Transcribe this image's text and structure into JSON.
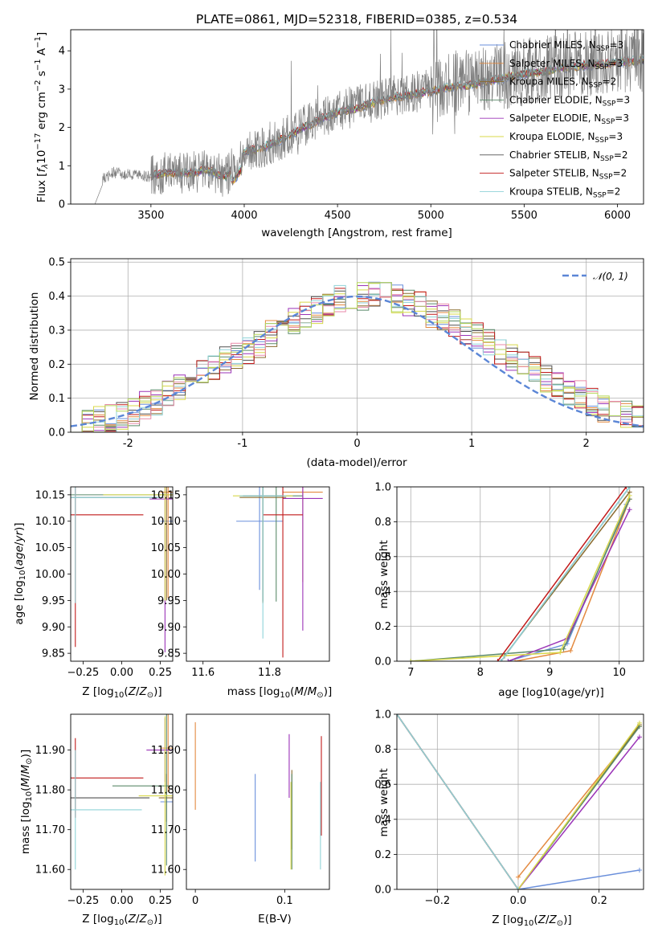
{
  "colors": {
    "Chabrier MILES": "#6a8fdb",
    "Salpeter MILES": "#e3893f",
    "Kroupa MILES": "#8a6b2e",
    "Chabrier ELODIE": "#5b8a6a",
    "Salpeter ELODIE": "#9b34b8",
    "Kroupa ELODIE": "#d8d84a",
    "Chabrier STELIB": "#505050",
    "Salpeter STELIB": "#c11a1a",
    "Kroupa STELIB": "#8fd3d8",
    "extra_pink": "#e98aa9",
    "extra_lime": "#b5d65a",
    "normal_curve": "#5b86d6",
    "data_spectrum": "#808080",
    "grid": "#b0b0b0"
  },
  "models": [
    {
      "name": "Chabrier MILES",
      "library": "MILES",
      "nssp": "3"
    },
    {
      "name": "Salpeter MILES",
      "library": "MILES",
      "nssp": "3"
    },
    {
      "name": "Kroupa MILES",
      "library": "MILES",
      "nssp": "2"
    },
    {
      "name": "Chabrier ELODIE",
      "library": "ELODIE",
      "nssp": "3"
    },
    {
      "name": "Salpeter ELODIE",
      "library": "ELODIE",
      "nssp": "3"
    },
    {
      "name": "Kroupa ELODIE",
      "library": "ELODIE",
      "nssp": "3"
    },
    {
      "name": "Chabrier STELIB",
      "library": "STELIB",
      "nssp": "2"
    },
    {
      "name": "Salpeter STELIB",
      "library": "STELIB",
      "nssp": "2"
    },
    {
      "name": "Kroupa STELIB",
      "library": "STELIB",
      "nssp": "2"
    }
  ],
  "chart_data": [
    {
      "id": "spectrum",
      "type": "line",
      "title": "PLATE=0861, MJD=52318, FIBERID=0385, z=0.534",
      "xlabel": "wavelength [Angstrom, rest frame]",
      "ylabel": "Flux [f_λ 10^-17 erg cm^-2 s^-1 A^-1]",
      "xlim": [
        3070,
        6140
      ],
      "ylim": [
        0,
        4.55
      ],
      "xticks": [
        3500,
        4000,
        4500,
        5000,
        5500,
        6000
      ],
      "yticks": [
        0,
        1,
        2,
        3,
        4
      ],
      "legend": "top-right",
      "data_range": [
        3200,
        6140
      ],
      "data_envelope": {
        "x": [
          3200,
          3240,
          3300,
          3400,
          3500,
          3600,
          3700,
          3800,
          3900,
          4000,
          4100,
          4200,
          4300,
          4400,
          4500,
          4600,
          4700,
          4800,
          4900,
          5000,
          5100,
          5200,
          5300,
          5400,
          5500,
          5600,
          5700,
          5800,
          5900,
          6000,
          6100
        ],
        "y": [
          0.0,
          0.65,
          0.82,
          0.75,
          0.72,
          0.85,
          0.8,
          0.9,
          0.7,
          1.35,
          1.5,
          1.7,
          2.0,
          2.25,
          2.45,
          2.55,
          2.7,
          2.85,
          2.9,
          3.0,
          3.1,
          3.15,
          3.25,
          3.35,
          3.45,
          3.5,
          3.6,
          3.65,
          3.7,
          3.75,
          3.8
        ]
      },
      "model_envelope": {
        "x": [
          3500,
          3600,
          3700,
          3800,
          3900,
          4000,
          4100,
          4200,
          4300,
          4400,
          4500,
          4600,
          4700,
          4800,
          4900,
          5000,
          5100,
          5200,
          5300,
          5400,
          5500,
          5600,
          5700,
          5800,
          5900,
          6000,
          6140
        ],
        "y": [
          0.75,
          0.82,
          0.8,
          0.9,
          0.7,
          1.35,
          1.48,
          1.68,
          1.95,
          2.2,
          2.4,
          2.5,
          2.65,
          2.8,
          2.85,
          2.95,
          3.05,
          3.1,
          3.2,
          3.3,
          3.4,
          3.45,
          3.55,
          3.6,
          3.65,
          3.7,
          3.75
        ]
      }
    },
    {
      "id": "residuals",
      "type": "line",
      "xlabel": "(data-model)/error",
      "ylabel": "Normed distribution",
      "xlim": [
        -2.5,
        2.5
      ],
      "ylim": [
        0,
        0.51
      ],
      "xticks": [
        -2,
        -1,
        0,
        1,
        2
      ],
      "yticks": [
        0.0,
        0.1,
        0.2,
        0.3,
        0.4,
        0.5
      ],
      "legend": "top-right",
      "legend_label": "N(0,1)",
      "bin_width": 0.1,
      "base_hist": [
        0.03,
        0.03,
        0.04,
        0.04,
        0.05,
        0.06,
        0.08,
        0.09,
        0.11,
        0.13,
        0.14,
        0.17,
        0.19,
        0.21,
        0.22,
        0.24,
        0.26,
        0.29,
        0.31,
        0.33,
        0.35,
        0.36,
        0.38,
        0.39,
        0.4,
        0.4,
        0.4,
        0.4,
        0.39,
        0.38,
        0.37,
        0.35,
        0.34,
        0.32,
        0.3,
        0.28,
        0.26,
        0.24,
        0.22,
        0.2,
        0.18,
        0.16,
        0.14,
        0.12,
        0.11,
        0.09,
        0.07,
        0.06,
        0.05,
        0.04
      ]
    },
    {
      "id": "age_vs_Z",
      "type": "scatter",
      "xlabel": "Z [log10(Z/Z⊙)]",
      "ylabel": "age [log10(age/yr)]",
      "xlim": [
        -0.33,
        0.33
      ],
      "ylim": [
        9.835,
        10.165
      ],
      "xticks": [
        -0.25,
        0.0,
        0.25
      ],
      "xtick_labels": [
        "−0.25",
        "0.00",
        "0.25"
      ],
      "yticks": [
        9.85,
        9.9,
        9.95,
        10.0,
        10.05,
        10.1,
        10.15
      ],
      "points": [
        {
          "model": "Chabrier MILES",
          "x": 0.3,
          "y": 10.1,
          "xerr": 0.05,
          "yerr": 0.0
        },
        {
          "model": "Salpeter MILES",
          "x": 0.3,
          "y": 10.155,
          "xerr": 0.05,
          "yerr": 0.2
        },
        {
          "model": "Kroupa MILES",
          "x": 0.29,
          "y": 10.15,
          "xerr": 0.05,
          "yerr": 0.2
        },
        {
          "model": "Chabrier ELODIE",
          "x": -0.28,
          "y": 10.15,
          "xerr": 0.56,
          "yerr": 0.0
        },
        {
          "model": "Salpeter ELODIE",
          "x": 0.28,
          "y": 10.142,
          "xerr": 0.1,
          "yerr": 0.29
        },
        {
          "model": "Kroupa ELODIE",
          "x": 0.28,
          "y": 10.15,
          "xerr": 0.4,
          "yerr": 0.2
        },
        {
          "model": "Chabrier STELIB",
          "x": -0.28,
          "y": 10.145,
          "xerr": 0.55,
          "yerr": 0.0
        },
        {
          "model": "Salpeter STELIB",
          "x": -0.3,
          "y": 10.112,
          "xerr": 0.44,
          "yerr": 0.25
        },
        {
          "model": "Kroupa STELIB",
          "x": -0.3,
          "y": 10.145,
          "xerr": 0.56,
          "yerr": 0.2
        }
      ]
    },
    {
      "id": "age_vs_mass",
      "type": "scatter",
      "xlabel": "mass [log10(M/M⊙)]",
      "ylabel": "",
      "xlim": [
        11.55,
        11.98
      ],
      "ylim": [
        9.835,
        10.165
      ],
      "xticks": [
        11.6,
        11.8
      ],
      "yticks": [
        9.85,
        9.9,
        9.95,
        10.0,
        10.05,
        10.1,
        10.15
      ],
      "points": [
        {
          "model": "Chabrier MILES",
          "x": 11.77,
          "y": 10.1,
          "xerr": 0.07,
          "yerr": 0.13
        },
        {
          "model": "Salpeter MILES",
          "x": 11.9,
          "y": 10.155,
          "xerr": 0.06,
          "yerr": 0.17
        },
        {
          "model": "Kroupa MILES",
          "x": 11.78,
          "y": 10.145,
          "xerr": 0.07,
          "yerr": 0.2
        },
        {
          "model": "Chabrier ELODIE",
          "x": 11.82,
          "y": 10.148,
          "xerr": 0.08,
          "yerr": 0.2
        },
        {
          "model": "Salpeter ELODIE",
          "x": 11.9,
          "y": 10.143,
          "xerr": 0.06,
          "yerr": 0.25
        },
        {
          "model": "Kroupa ELODIE",
          "x": 11.78,
          "y": 10.148,
          "xerr": 0.09,
          "yerr": 0.2
        },
        {
          "model": "Chabrier STELIB",
          "x": 11.78,
          "y": 10.148,
          "xerr": 0.06,
          "yerr": 0.2
        },
        {
          "model": "Salpeter STELIB",
          "x": 11.84,
          "y": 10.112,
          "xerr": 0.06,
          "yerr": 0.27
        },
        {
          "model": "Kroupa STELIB",
          "x": 11.78,
          "y": 10.148,
          "xerr": 0.07,
          "yerr": 0.27
        }
      ]
    },
    {
      "id": "weight_vs_age",
      "type": "line",
      "xlabel": "age [log10(age/yr)]",
      "ylabel": "mass weight",
      "xlim": [
        6.8,
        10.35
      ],
      "ylim": [
        0,
        1
      ],
      "xticks": [
        7,
        8,
        9,
        10
      ],
      "yticks": [
        0.0,
        0.2,
        0.4,
        0.6,
        0.8,
        1.0
      ],
      "series": [
        {
          "model": "Chabrier MILES",
          "x": [
            8.4,
            9.25,
            10.1
          ],
          "y": [
            0.0,
            0.1,
            0.9
          ]
        },
        {
          "model": "Salpeter MILES",
          "x": [
            8.5,
            9.3,
            10.15
          ],
          "y": [
            0.0,
            0.06,
            0.93
          ]
        },
        {
          "model": "Kroupa MILES",
          "x": [
            8.35,
            10.15
          ],
          "y": [
            0.03,
            0.97
          ]
        },
        {
          "model": "Chabrier ELODIE",
          "x": [
            7.0,
            9.2,
            10.15
          ],
          "y": [
            0.0,
            0.07,
            0.93
          ]
        },
        {
          "model": "Salpeter ELODIE",
          "x": [
            8.4,
            9.25,
            10.15
          ],
          "y": [
            0.0,
            0.13,
            0.87
          ]
        },
        {
          "model": "Kroupa ELODIE",
          "x": [
            7.0,
            9.15,
            10.15
          ],
          "y": [
            0.0,
            0.05,
            0.95
          ]
        },
        {
          "model": "Chabrier STELIB",
          "x": [
            8.3,
            10.15
          ],
          "y": [
            0.0,
            1.0
          ]
        },
        {
          "model": "Salpeter STELIB",
          "x": [
            8.25,
            10.1
          ],
          "y": [
            0.0,
            1.0
          ]
        },
        {
          "model": "Kroupa STELIB",
          "x": [
            8.3,
            10.15
          ],
          "y": [
            0.0,
            1.0
          ]
        }
      ]
    },
    {
      "id": "mass_vs_Z",
      "type": "scatter",
      "xlabel": "Z [log10(Z/Z⊙)]",
      "ylabel": "mass [log10(M/M⊙)]",
      "xlim": [
        -0.33,
        0.33
      ],
      "ylim": [
        11.55,
        11.99
      ],
      "xticks": [
        -0.25,
        0.0,
        0.25
      ],
      "xtick_labels": [
        "−0.25",
        "0.00",
        "0.25"
      ],
      "yticks": [
        11.6,
        11.7,
        11.8,
        11.9
      ],
      "points": [
        {
          "model": "Chabrier MILES",
          "x": 0.3,
          "y": 11.77,
          "xerr": 0.05,
          "yerr": 0.0
        },
        {
          "model": "Salpeter MILES",
          "x": 0.3,
          "y": 11.905,
          "xerr": 0.05,
          "yerr": 0.11
        },
        {
          "model": "Kroupa MILES",
          "x": 0.29,
          "y": 11.78,
          "xerr": 0.05,
          "yerr": 0.06
        },
        {
          "model": "Chabrier ELODIE",
          "x": 0.29,
          "y": 11.81,
          "xerr": 0.35,
          "yerr": 0.2
        },
        {
          "model": "Salpeter ELODIE",
          "x": 0.28,
          "y": 11.9,
          "xerr": 0.12,
          "yerr": 0.08
        },
        {
          "model": "Kroupa ELODIE",
          "x": 0.28,
          "y": 11.785,
          "xerr": 0.17,
          "yerr": 0.2
        },
        {
          "model": "Chabrier STELIB",
          "x": -0.3,
          "y": 11.78,
          "xerr": 0.48,
          "yerr": 0.0
        },
        {
          "model": "Salpeter STELIB",
          "x": -0.3,
          "y": 11.83,
          "xerr": 0.44,
          "yerr": 0.1
        },
        {
          "model": "Kroupa STELIB",
          "x": -0.3,
          "y": 11.75,
          "xerr": 0.43,
          "yerr": 0.15
        }
      ]
    },
    {
      "id": "mass_vs_ebv",
      "type": "scatter",
      "xlabel": "E(B-V)",
      "ylabel": "",
      "xlim": [
        -0.01,
        0.15
      ],
      "ylim": [
        11.55,
        11.99
      ],
      "xticks": [
        0.0,
        0.1
      ],
      "yticks": [
        11.6,
        11.7,
        11.8,
        11.9
      ],
      "points": [
        {
          "model": "Chabrier MILES",
          "x": 0.067,
          "y": 11.73,
          "yerr": 0.11
        },
        {
          "model": "Salpeter MILES",
          "x": 0.0,
          "y": 11.86,
          "yerr": 0.11
        },
        {
          "model": "Kroupa MILES",
          "x": 0.108,
          "y": 11.75,
          "yerr": 0.1
        },
        {
          "model": "Chabrier ELODIE",
          "x": 0.108,
          "y": 11.72,
          "yerr": 0.12
        },
        {
          "model": "Salpeter ELODIE",
          "x": 0.105,
          "y": 11.86,
          "yerr": 0.08
        },
        {
          "model": "Kroupa ELODIE",
          "x": 0.107,
          "y": 11.71,
          "yerr": 0.11
        },
        {
          "model": "Chabrier STELIB",
          "x": 0.108,
          "y": 11.74,
          "yerr": 0.0
        },
        {
          "model": "Salpeter STELIB",
          "x": 0.141,
          "y": 11.81,
          "yerr": 0.125
        },
        {
          "model": "Kroupa STELIB",
          "x": 0.14,
          "y": 11.71,
          "yerr": 0.11
        }
      ]
    },
    {
      "id": "weight_vs_Z",
      "type": "line",
      "xlabel": "Z [log10(Z/Z⊙)]",
      "ylabel": "mass weight",
      "xlim": [
        -0.3,
        0.31
      ],
      "ylim": [
        0,
        1
      ],
      "xticks": [
        -0.2,
        0.0,
        0.2
      ],
      "xtick_labels": [
        "−0.2",
        "0.0",
        "0.2"
      ],
      "yticks": [
        0.0,
        0.2,
        0.4,
        0.6,
        0.8,
        1.0
      ],
      "series": [
        {
          "model": "Chabrier MILES",
          "x": [
            0.0,
            0.3
          ],
          "y": [
            0.0,
            0.11
          ]
        },
        {
          "model": "Salpeter MILES",
          "x": [
            0.0,
            0.3
          ],
          "y": [
            0.07,
            0.93
          ]
        },
        {
          "model": "Kroupa MILES",
          "x": [
            -0.3,
            0.0,
            0.3
          ],
          "y": [
            1.0,
            0.0,
            0.94
          ]
        },
        {
          "model": "Chabrier ELODIE",
          "x": [
            0.0,
            0.3
          ],
          "y": [
            0.0,
            0.93
          ]
        },
        {
          "model": "Salpeter ELODIE",
          "x": [
            0.0,
            0.3
          ],
          "y": [
            0.0,
            0.87
          ]
        },
        {
          "model": "Kroupa ELODIE",
          "x": [
            0.0,
            0.3
          ],
          "y": [
            0.0,
            0.95
          ]
        },
        {
          "model": "Chabrier STELIB",
          "x": [
            -0.3,
            0.0
          ],
          "y": [
            1.0,
            0.0
          ]
        },
        {
          "model": "Salpeter STELIB",
          "x": [
            -0.3,
            0.0
          ],
          "y": [
            1.0,
            0.0
          ]
        },
        {
          "model": "Kroupa STELIB",
          "x": [
            -0.3,
            0.0
          ],
          "y": [
            1.0,
            0.0
          ]
        }
      ]
    }
  ]
}
